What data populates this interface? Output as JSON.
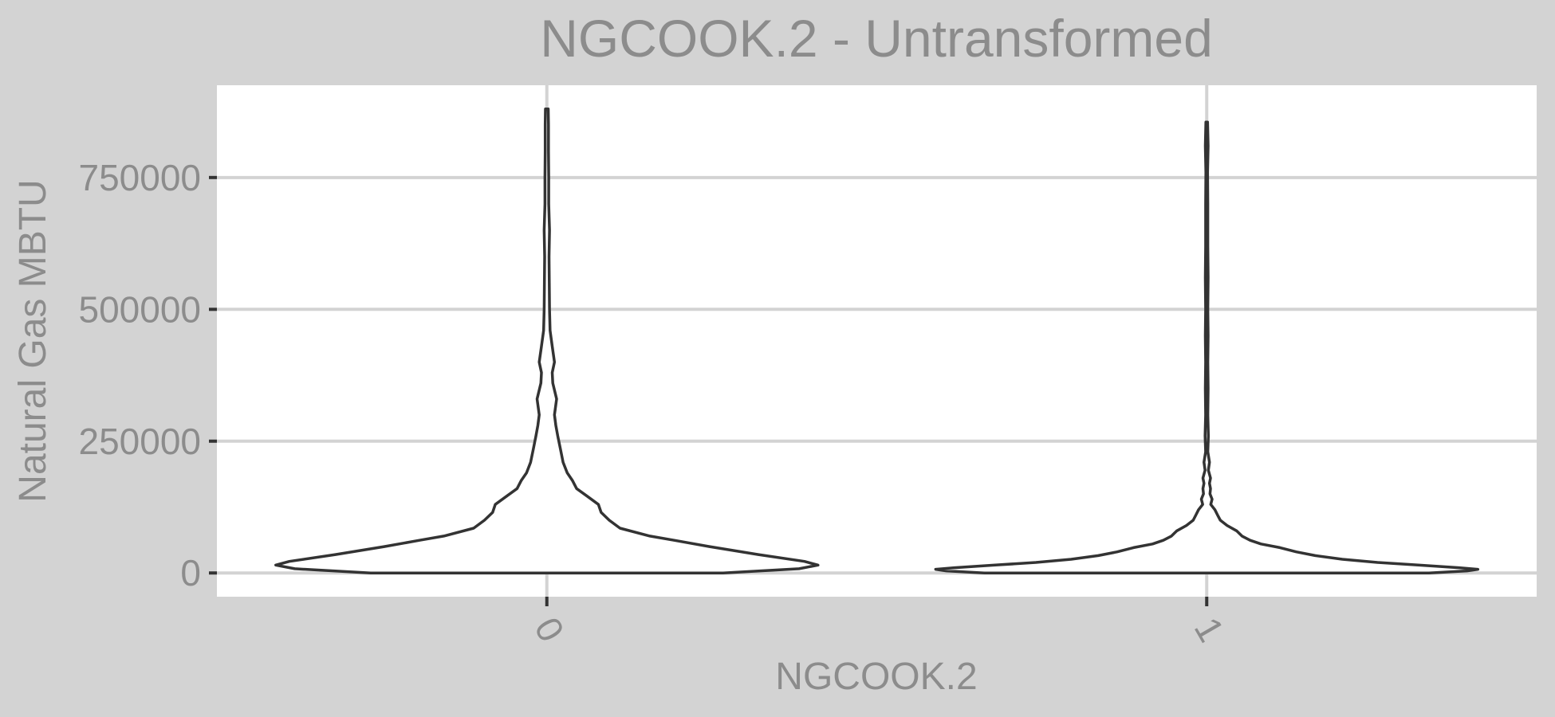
{
  "chart_data": {
    "type": "violin",
    "title": "NGCOOK.2 - Untransformed",
    "xlabel": "NGCOOK.2",
    "ylabel": "Natural Gas MBTU",
    "categories": [
      "0",
      "1"
    ],
    "ylim": [
      -45000,
      925000
    ],
    "yticks": [
      0,
      250000,
      500000,
      750000
    ],
    "ytick_labels": [
      "0",
      "250000",
      "500000",
      "750000"
    ],
    "grid": true,
    "legend": "none",
    "colors": {
      "panel_background": "#d3d3d3",
      "plot_background": "#ffffff",
      "grid": "#d3d3d3",
      "outline": "#333333",
      "text": "#8c8c8c"
    },
    "violins": [
      {
        "category": "0",
        "min": 0,
        "max": 880000,
        "density": [
          [
            0,
            0.65
          ],
          [
            8000,
            0.93
          ],
          [
            15000,
            1.0
          ],
          [
            22000,
            0.95
          ],
          [
            35000,
            0.78
          ],
          [
            50000,
            0.6
          ],
          [
            62000,
            0.47
          ],
          [
            70000,
            0.38
          ],
          [
            85000,
            0.27
          ],
          [
            100000,
            0.23
          ],
          [
            115000,
            0.2
          ],
          [
            130000,
            0.19
          ],
          [
            145000,
            0.15
          ],
          [
            160000,
            0.11
          ],
          [
            175000,
            0.095
          ],
          [
            190000,
            0.075
          ],
          [
            210000,
            0.06
          ],
          [
            235000,
            0.05
          ],
          [
            260000,
            0.04
          ],
          [
            280000,
            0.033
          ],
          [
            300000,
            0.028
          ],
          [
            330000,
            0.036
          ],
          [
            360000,
            0.022
          ],
          [
            380000,
            0.02
          ],
          [
            400000,
            0.028
          ],
          [
            430000,
            0.02
          ],
          [
            460000,
            0.012
          ],
          [
            500000,
            0.01
          ],
          [
            550000,
            0.009
          ],
          [
            600000,
            0.008
          ],
          [
            650000,
            0.01
          ],
          [
            700000,
            0.007
          ],
          [
            750000,
            0.007
          ],
          [
            800000,
            0.006
          ],
          [
            850000,
            0.006
          ],
          [
            880000,
            0.005
          ]
        ]
      },
      {
        "category": "1",
        "min": 0,
        "max": 855000,
        "density": [
          [
            0,
            0.82
          ],
          [
            4000,
            0.96
          ],
          [
            7000,
            1.0
          ],
          [
            10000,
            0.93
          ],
          [
            15000,
            0.78
          ],
          [
            20000,
            0.63
          ],
          [
            26000,
            0.5
          ],
          [
            33000,
            0.4
          ],
          [
            40000,
            0.33
          ],
          [
            48000,
            0.27
          ],
          [
            55000,
            0.2
          ],
          [
            62000,
            0.16
          ],
          [
            70000,
            0.13
          ],
          [
            80000,
            0.11
          ],
          [
            90000,
            0.075
          ],
          [
            100000,
            0.05
          ],
          [
            110000,
            0.04
          ],
          [
            120000,
            0.03
          ],
          [
            130000,
            0.015
          ],
          [
            140000,
            0.02
          ],
          [
            150000,
            0.012
          ],
          [
            160000,
            0.014
          ],
          [
            170000,
            0.01
          ],
          [
            180000,
            0.014
          ],
          [
            195000,
            0.006
          ],
          [
            210000,
            0.01
          ],
          [
            230000,
            0.004
          ],
          [
            260000,
            0.006
          ],
          [
            300000,
            0.004
          ],
          [
            350000,
            0.005
          ],
          [
            400000,
            0.004
          ],
          [
            450000,
            0.005
          ],
          [
            500000,
            0.004
          ],
          [
            560000,
            0.005
          ],
          [
            620000,
            0.004
          ],
          [
            700000,
            0.004
          ],
          [
            760000,
            0.003
          ],
          [
            810000,
            0.005
          ],
          [
            855000,
            0.003
          ]
        ]
      }
    ]
  }
}
